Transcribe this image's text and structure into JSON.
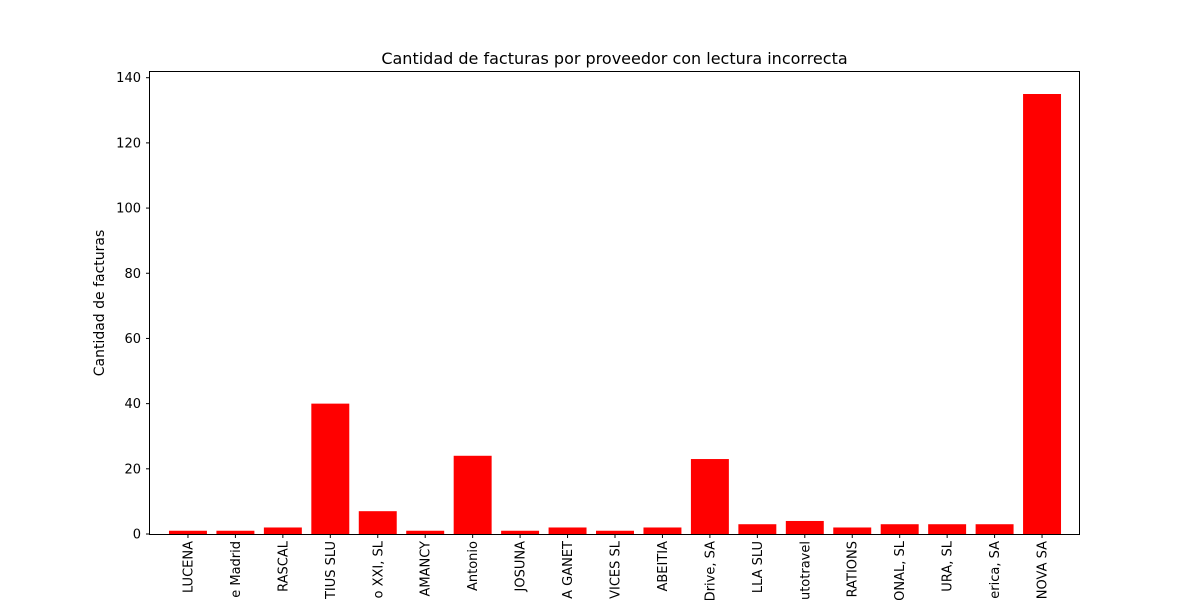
{
  "chart_data": {
    "type": "bar",
    "title": "Cantidad de facturas por proveedor con lectura incorrecta",
    "xlabel": "",
    "ylabel": "Cantidad de facturas",
    "categories": [
      "LUCENA",
      "e Madrid",
      "RASCAL",
      "TIUS SLU",
      "o XXI, SL",
      "AMANCY",
      "Antonio",
      "JOSUNA",
      "A GANET",
      "VICES SL",
      "ABEITIA",
      "Drive, SA",
      "LLA SLU",
      "Autotravel",
      "RATIONS",
      "ONAL, SL",
      "URA, SL",
      "erica, SA",
      "NOVA SA"
    ],
    "values": [
      1,
      1,
      2,
      40,
      7,
      1,
      24,
      1,
      2,
      1,
      2,
      23,
      3,
      4,
      2,
      3,
      3,
      3,
      135
    ],
    "ylim": [
      0,
      141.75
    ],
    "yticks": [
      0,
      20,
      40,
      60,
      80,
      100,
      120,
      140
    ],
    "bar_color": "#ff0000",
    "grid": false,
    "legend": "none"
  }
}
